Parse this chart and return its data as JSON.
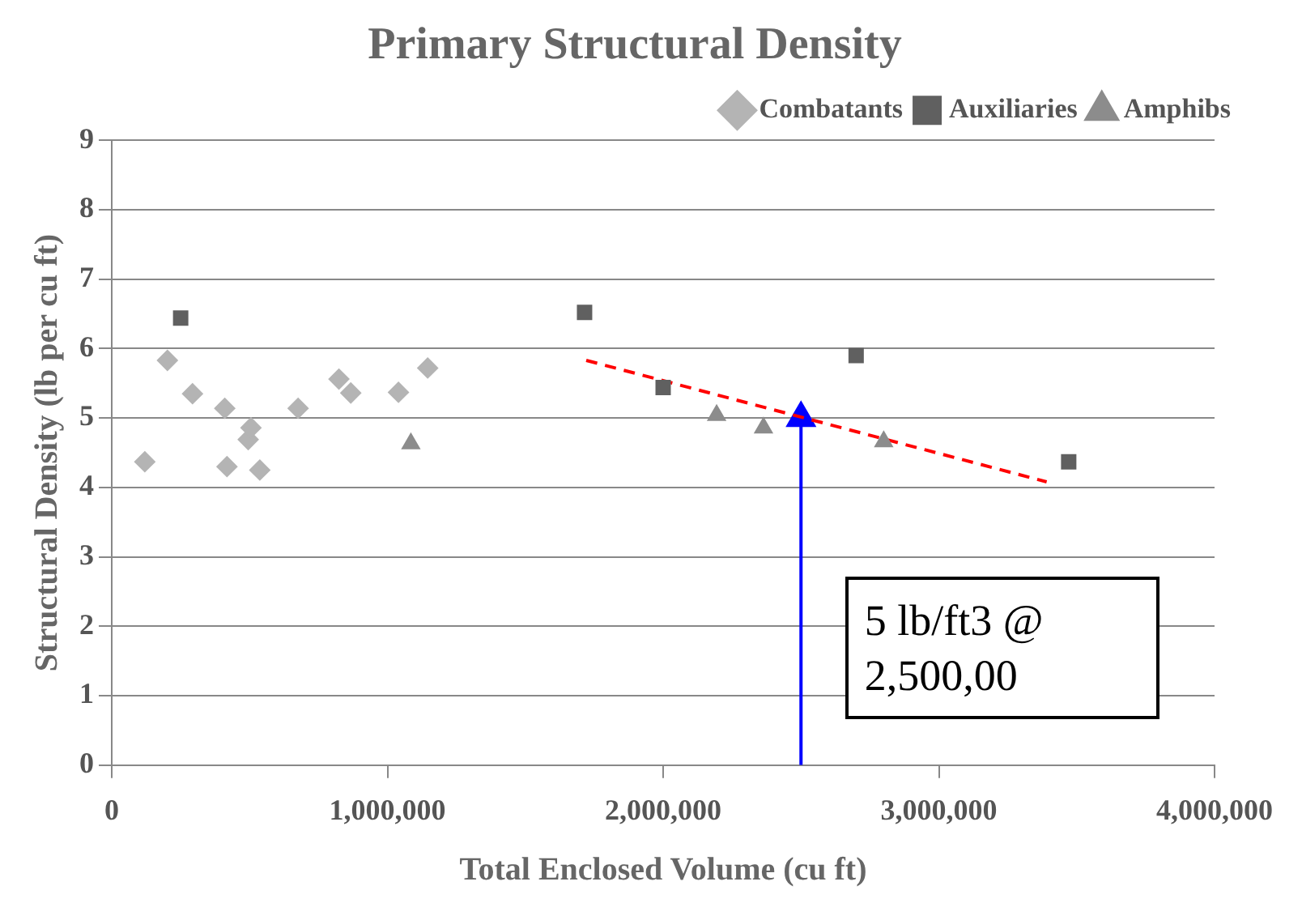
{
  "chart_data": {
    "type": "scatter",
    "title": "Primary Structural Density",
    "xlabel": "Total Enclosed Volume (cu ft)",
    "ylabel": "Structural Density (lb per cu ft)",
    "series": [
      {
        "name": "Combatants",
        "color": "#b4b4b4",
        "marker": "diamond",
        "x": [
          120000,
          202000,
          293000,
          410000,
          418000,
          495000,
          505000,
          537000,
          676000,
          824000,
          867000,
          1040000,
          1146000
        ],
        "values": [
          4.37,
          5.83,
          5.35,
          5.14,
          4.3,
          4.69,
          4.86,
          4.25,
          5.14,
          5.56,
          5.36,
          5.37,
          5.72
        ]
      },
      {
        "name": "Auxiliaries",
        "color": "#606060",
        "marker": "square",
        "x": [
          250000,
          1715000,
          2000000,
          2700000,
          3471000
        ],
        "values": [
          6.44,
          6.52,
          5.44,
          5.9,
          4.37
        ]
      },
      {
        "name": "Amphibs",
        "color": "#8c8c8c",
        "marker": "triangle",
        "x": [
          1085000,
          2194000,
          2364000,
          2800000
        ],
        "values": [
          4.63,
          5.04,
          4.86,
          4.66
        ]
      },
      {
        "type": "line",
        "color": "#ff0000",
        "line_style": "dashed",
        "marker": "none",
        "x": [
          1721000,
          3391000
        ],
        "values": [
          5.83,
          4.08
        ]
      },
      {
        "type": "line",
        "color": "#0000ff",
        "line_style": "solid",
        "marker": "triangle",
        "x": [
          2500000,
          2500000
        ],
        "values": [
          0,
          5
        ]
      }
    ],
    "xlim": [
      0,
      4000000
    ],
    "xticks": [
      0,
      {
        "value": 1000000,
        "label": "1,000,000"
      },
      {
        "value": 2000000,
        "label": "2,000,000"
      },
      {
        "value": 3000000,
        "label": "3,000,000"
      },
      {
        "value": 4000000,
        "label": "4,000,000"
      }
    ],
    "ylim": [
      0,
      9
    ],
    "yticks": [
      0,
      1,
      2,
      3,
      4,
      5,
      6,
      7,
      8,
      9
    ],
    "grid": "y",
    "legend": "top right",
    "annotations": [
      "5 lb/ft3 @\n2,500,00"
    ]
  }
}
